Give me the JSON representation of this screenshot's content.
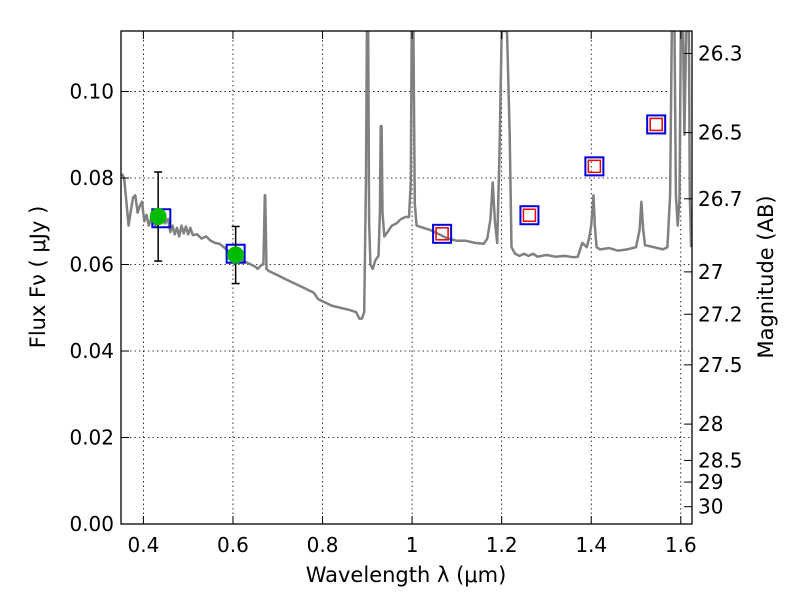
{
  "chart_data": {
    "type": "scatter",
    "title": "",
    "xlabel": "Wavelength  λ (μm)",
    "ylabel": "Flux  Fν  ( μJy )",
    "ylabel_right": "Magnitude (AB)",
    "xlim": [
      0.35,
      1.625
    ],
    "ylim": [
      0.0,
      0.114
    ],
    "grid": "dotted",
    "x_ticks": [
      {
        "value": 0.4,
        "label": "0.4"
      },
      {
        "value": 0.6,
        "label": "0.6"
      },
      {
        "value": 0.8,
        "label": "0.8"
      },
      {
        "value": 1.0,
        "label": "1"
      },
      {
        "value": 1.2,
        "label": "1.2"
      },
      {
        "value": 1.4,
        "label": "1.4"
      },
      {
        "value": 1.6,
        "label": "1.6"
      }
    ],
    "y_ticks": [
      {
        "value": 0.0,
        "label": "0.00"
      },
      {
        "value": 0.02,
        "label": "0.02"
      },
      {
        "value": 0.04,
        "label": "0.04"
      },
      {
        "value": 0.06,
        "label": "0.06"
      },
      {
        "value": 0.08,
        "label": "0.08"
      },
      {
        "value": 0.1,
        "label": "0.10"
      }
    ],
    "mag_ticks": [
      {
        "label": "26.3",
        "flux": 0.1088
      },
      {
        "label": "26.5",
        "flux": 0.0905
      },
      {
        "label": "26.7",
        "flux": 0.0752
      },
      {
        "label": "27",
        "flux": 0.0583
      },
      {
        "label": "27.2",
        "flux": 0.0485
      },
      {
        "label": "27.5",
        "flux": 0.0368
      },
      {
        "label": "28",
        "flux": 0.0231
      },
      {
        "label": "28.5",
        "flux": 0.0147
      },
      {
        "label": "29",
        "flux": 0.0097
      },
      {
        "label": "30",
        "flux": 0.004
      }
    ],
    "series": [
      {
        "style": "line",
        "color": "#808080",
        "points": [
          [
            0.352,
            0.081
          ],
          [
            0.357,
            0.08
          ],
          [
            0.362,
            0.0745
          ],
          [
            0.367,
            0.069
          ],
          [
            0.372,
            0.0725
          ],
          [
            0.377,
            0.0755
          ],
          [
            0.382,
            0.076
          ],
          [
            0.387,
            0.072
          ],
          [
            0.392,
            0.0735
          ],
          [
            0.397,
            0.0745
          ],
          [
            0.402,
            0.07
          ],
          [
            0.407,
            0.0715
          ],
          [
            0.412,
            0.069
          ],
          [
            0.417,
            0.0705
          ],
          [
            0.422,
            0.07
          ],
          [
            0.427,
            0.069
          ],
          [
            0.433,
            0.07
          ],
          [
            0.438,
            0.071
          ],
          [
            0.443,
            0.072
          ],
          [
            0.448,
            0.0695
          ],
          [
            0.455,
            0.0705
          ],
          [
            0.46,
            0.0675
          ],
          [
            0.465,
            0.069
          ],
          [
            0.47,
            0.067
          ],
          [
            0.475,
            0.0685
          ],
          [
            0.48,
            0.0665
          ],
          [
            0.485,
            0.069
          ],
          [
            0.49,
            0.0672
          ],
          [
            0.495,
            0.0688
          ],
          [
            0.5,
            0.067
          ],
          [
            0.505,
            0.0685
          ],
          [
            0.51,
            0.0668
          ],
          [
            0.52,
            0.067
          ],
          [
            0.53,
            0.066
          ],
          [
            0.54,
            0.0665
          ],
          [
            0.55,
            0.0655
          ],
          [
            0.56,
            0.065
          ],
          [
            0.57,
            0.0648
          ],
          [
            0.58,
            0.064
          ],
          [
            0.59,
            0.063
          ],
          [
            0.6,
            0.0625
          ],
          [
            0.61,
            0.0615
          ],
          [
            0.62,
            0.061
          ],
          [
            0.63,
            0.0605
          ],
          [
            0.64,
            0.06
          ],
          [
            0.65,
            0.0595
          ],
          [
            0.655,
            0.059
          ],
          [
            0.66,
            0.0595
          ],
          [
            0.665,
            0.06
          ],
          [
            0.668,
            0.06
          ],
          [
            0.67,
            0.07
          ],
          [
            0.671,
            0.076
          ],
          [
            0.672,
            0.076
          ],
          [
            0.673,
            0.07
          ],
          [
            0.675,
            0.059
          ],
          [
            0.68,
            0.0585
          ],
          [
            0.7,
            0.0575
          ],
          [
            0.72,
            0.0565
          ],
          [
            0.74,
            0.0555
          ],
          [
            0.76,
            0.0545
          ],
          [
            0.78,
            0.0535
          ],
          [
            0.79,
            0.052
          ],
          [
            0.8,
            0.0515
          ],
          [
            0.81,
            0.051
          ],
          [
            0.82,
            0.0505
          ],
          [
            0.84,
            0.05
          ],
          [
            0.86,
            0.0495
          ],
          [
            0.875,
            0.049
          ],
          [
            0.882,
            0.0475
          ],
          [
            0.888,
            0.0475
          ],
          [
            0.893,
            0.049
          ],
          [
            0.897,
            0.08
          ],
          [
            0.899,
            0.114
          ],
          [
            0.902,
            0.114
          ],
          [
            0.904,
            0.07
          ],
          [
            0.907,
            0.06
          ],
          [
            0.912,
            0.059
          ],
          [
            0.918,
            0.061
          ],
          [
            0.925,
            0.062
          ],
          [
            0.928,
            0.072
          ],
          [
            0.93,
            0.092
          ],
          [
            0.932,
            0.092
          ],
          [
            0.934,
            0.072
          ],
          [
            0.938,
            0.0665
          ],
          [
            0.945,
            0.0675
          ],
          [
            0.955,
            0.069
          ],
          [
            0.965,
            0.0695
          ],
          [
            0.975,
            0.0705
          ],
          [
            0.985,
            0.071
          ],
          [
            0.993,
            0.071
          ],
          [
            0.997,
            0.079
          ],
          [
            0.999,
            0.114
          ],
          [
            1.003,
            0.114
          ],
          [
            1.006,
            0.074
          ],
          [
            1.01,
            0.069
          ],
          [
            1.025,
            0.0685
          ],
          [
            1.04,
            0.068
          ],
          [
            1.06,
            0.067
          ],
          [
            1.08,
            0.066
          ],
          [
            1.1,
            0.0655
          ],
          [
            1.12,
            0.0655
          ],
          [
            1.14,
            0.065
          ],
          [
            1.16,
            0.0648
          ],
          [
            1.168,
            0.066
          ],
          [
            1.175,
            0.0705
          ],
          [
            1.18,
            0.079
          ],
          [
            1.185,
            0.07
          ],
          [
            1.19,
            0.065
          ],
          [
            1.195,
            0.085
          ],
          [
            1.2,
            0.114
          ],
          [
            1.212,
            0.114
          ],
          [
            1.218,
            0.09
          ],
          [
            1.222,
            0.064
          ],
          [
            1.23,
            0.0625
          ],
          [
            1.24,
            0.062
          ],
          [
            1.25,
            0.0625
          ],
          [
            1.26,
            0.062
          ],
          [
            1.27,
            0.0625
          ],
          [
            1.28,
            0.0618
          ],
          [
            1.3,
            0.0622
          ],
          [
            1.32,
            0.0618
          ],
          [
            1.34,
            0.062
          ],
          [
            1.36,
            0.0617
          ],
          [
            1.37,
            0.0618
          ],
          [
            1.38,
            0.065
          ],
          [
            1.39,
            0.064
          ],
          [
            1.395,
            0.066
          ],
          [
            1.4,
            0.069
          ],
          [
            1.405,
            0.076
          ],
          [
            1.408,
            0.069
          ],
          [
            1.412,
            0.064
          ],
          [
            1.42,
            0.0635
          ],
          [
            1.44,
            0.0638
          ],
          [
            1.46,
            0.0632
          ],
          [
            1.48,
            0.0635
          ],
          [
            1.5,
            0.064
          ],
          [
            1.508,
            0.068
          ],
          [
            1.512,
            0.0745
          ],
          [
            1.516,
            0.068
          ],
          [
            1.52,
            0.0645
          ],
          [
            1.54,
            0.064
          ],
          [
            1.56,
            0.0635
          ],
          [
            1.57,
            0.064
          ],
          [
            1.576,
            0.076
          ],
          [
            1.58,
            0.114
          ],
          [
            1.586,
            0.114
          ],
          [
            1.589,
            0.076
          ],
          [
            1.593,
            0.069
          ],
          [
            1.597,
            0.075
          ],
          [
            1.6,
            0.114
          ],
          [
            1.605,
            0.114
          ],
          [
            1.608,
            0.09
          ],
          [
            1.612,
            0.114
          ],
          [
            1.618,
            0.114
          ],
          [
            1.62,
            0.076
          ],
          [
            1.623,
            0.064
          ]
        ]
      },
      {
        "style": "circle-errorbar",
        "color": "#00bb00",
        "points": [
          {
            "x": 0.433,
            "y": 0.0711,
            "yerr": 0.0103
          },
          {
            "x": 0.606,
            "y": 0.0622,
            "yerr": 0.0066
          }
        ]
      },
      {
        "style": "open-square",
        "color": "#0000dd",
        "points": [
          {
            "x": 0.44,
            "y": 0.0707
          },
          {
            "x": 0.606,
            "y": 0.0625
          },
          {
            "x": 1.067,
            "y": 0.0671
          },
          {
            "x": 1.262,
            "y": 0.0714
          },
          {
            "x": 1.407,
            "y": 0.0827
          },
          {
            "x": 1.545,
            "y": 0.0924
          }
        ]
      },
      {
        "style": "small-open-square",
        "color": "#ee0000",
        "points": [
          {
            "x": 1.067,
            "y": 0.0671
          },
          {
            "x": 1.262,
            "y": 0.0714
          },
          {
            "x": 1.407,
            "y": 0.0827
          },
          {
            "x": 1.545,
            "y": 0.0924
          }
        ]
      }
    ]
  }
}
